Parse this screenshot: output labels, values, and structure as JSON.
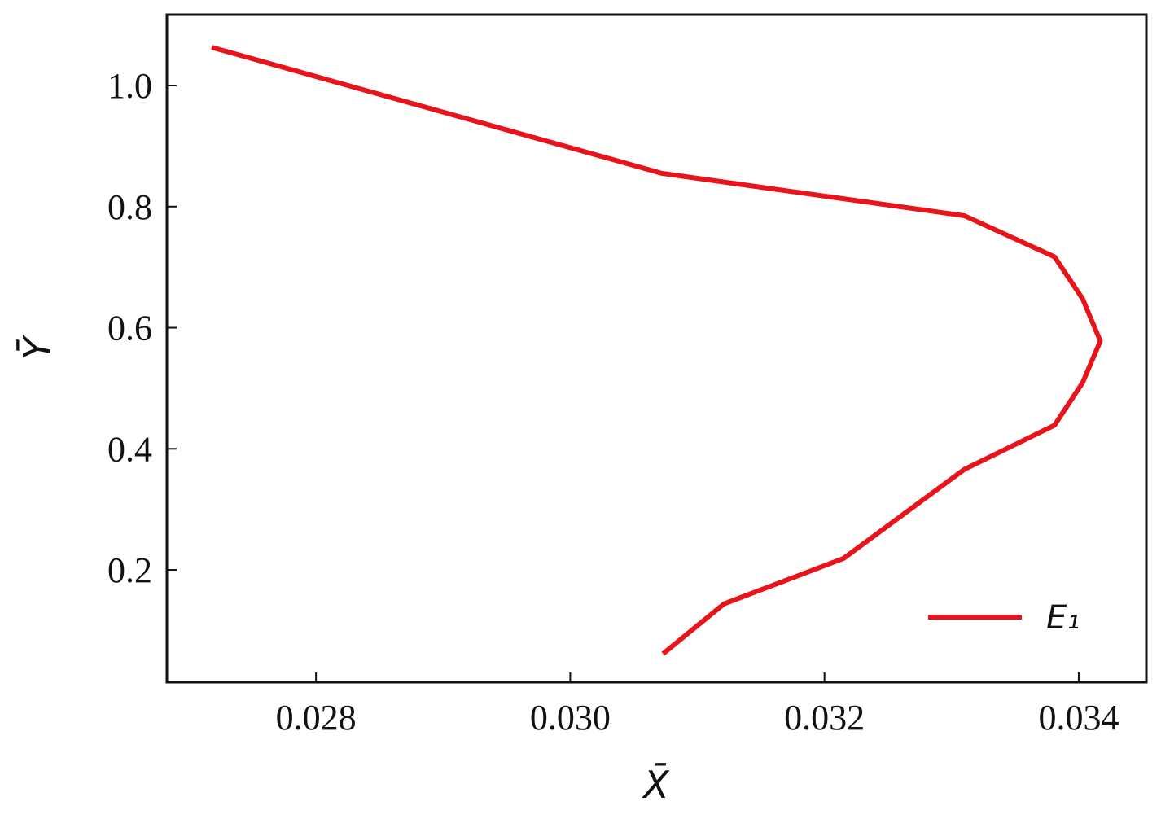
{
  "chart_data": {
    "type": "line",
    "x_label": "X̄",
    "y_label": "Ȳ",
    "x": [
      0.02718,
      0.03072,
      0.0331,
      0.03381,
      0.03403,
      0.03417,
      0.03403,
      0.03381,
      0.0331,
      0.03215,
      0.03121,
      0.03073
    ],
    "series": [
      {
        "name": "E₁",
        "color": "#e8141c",
        "values": [
          1.063,
          0.855,
          0.785,
          0.717,
          0.648,
          0.578,
          0.509,
          0.439,
          0.366,
          0.219,
          0.144,
          0.0615
        ]
      }
    ],
    "xlim": [
      0.026827,
      0.034532
    ],
    "xticks": [
      0.028,
      0.03,
      0.032,
      0.034
    ],
    "ylim": [
      0.0145,
      1.117
    ],
    "yticks": [
      {
        "value": 0.2,
        "label": "0.2"
      },
      {
        "value": 0.4,
        "label": "0.4"
      },
      {
        "value": 0.6,
        "label": "0.6"
      },
      {
        "value": 0.8,
        "label": "0.8"
      },
      {
        "value": 1.0,
        "label": "1.0"
      }
    ],
    "legend": "lower right"
  }
}
